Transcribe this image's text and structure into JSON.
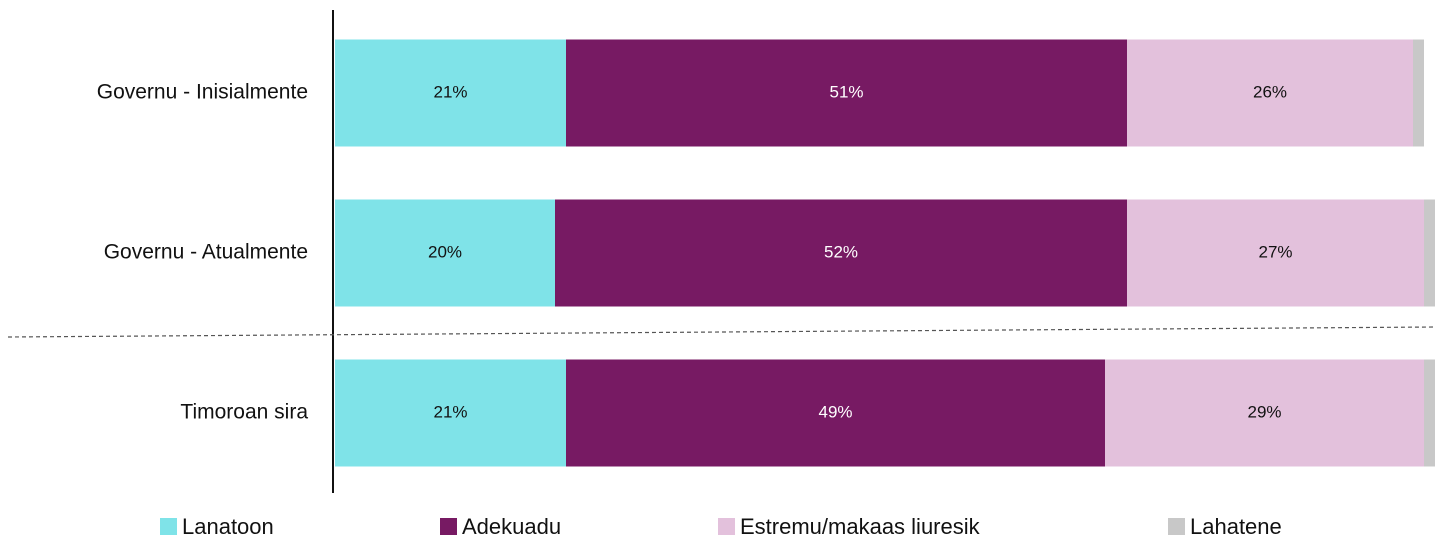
{
  "chart_data": {
    "type": "stacked-barh",
    "categories": [
      "Governu - Inisialmente",
      "Governu - Atualmente",
      "Timoroan sira"
    ],
    "series": [
      {
        "name": "Lanatoon",
        "color": "#7fe3e8",
        "values": [
          21,
          20,
          21
        ],
        "value_labels": [
          "21%",
          "20%",
          "21%"
        ]
      },
      {
        "name": "Adekuadu",
        "color": "#771a63",
        "values": [
          51,
          52,
          49
        ],
        "value_labels": [
          "51%",
          "52%",
          "49%"
        ]
      },
      {
        "name": "Estremu/makaas liuresik",
        "color": "#e3c1dc",
        "values": [
          26,
          27,
          29
        ],
        "value_labels": [
          "26%",
          "27%",
          "29%"
        ]
      },
      {
        "name": "Lahatene",
        "color": "#c8c8c8",
        "values": [
          1,
          1,
          1
        ]
      }
    ],
    "xlim": [
      0,
      100
    ],
    "legend": "bottom"
  }
}
